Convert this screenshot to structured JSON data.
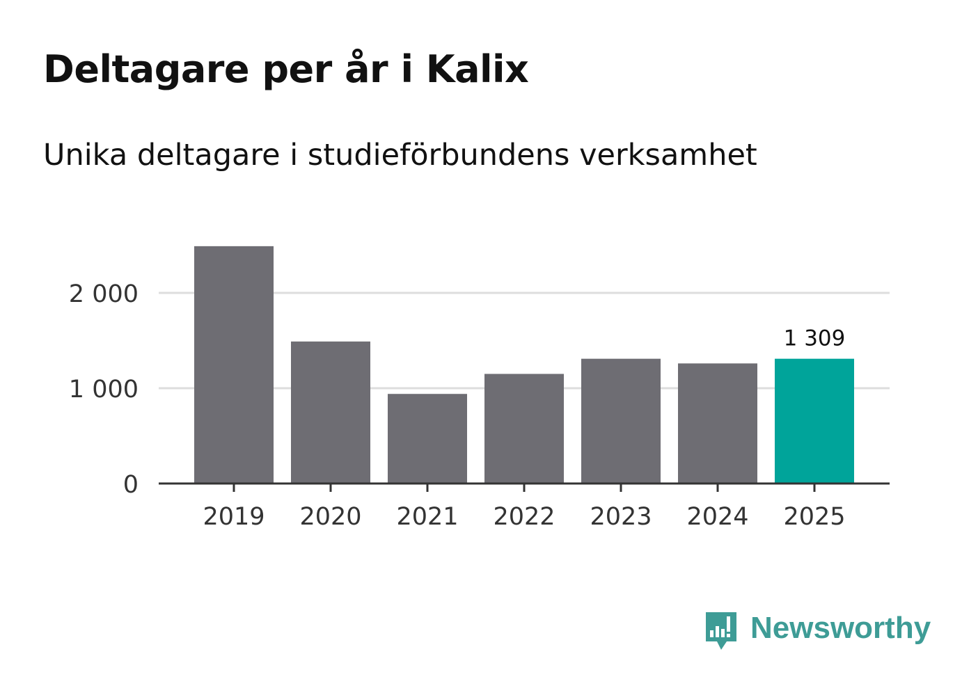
{
  "title": "Deltagare per år i Kalix",
  "subtitle": "Unika deltagare i studieförbundens verksamhet",
  "brand": {
    "name": "Newsworthy",
    "icon": "bar-chart-bubble-icon",
    "color": "#3e9c96"
  },
  "colors": {
    "bar": "#6e6d73",
    "highlight": "#00a49a",
    "grid": "#dddddd",
    "axis": "#333333"
  },
  "chart_data": {
    "type": "bar",
    "title": "Deltagare per år i Kalix",
    "subtitle": "Unika deltagare i studieförbundens verksamhet",
    "xlabel": "",
    "ylabel": "",
    "categories": [
      "2019",
      "2020",
      "2021",
      "2022",
      "2023",
      "2024",
      "2025"
    ],
    "values": [
      2490,
      1490,
      940,
      1150,
      1309,
      1260,
      1309
    ],
    "highlight_index": 6,
    "data_labels": [
      {
        "index": 6,
        "text": "1 309"
      }
    ],
    "yticks": [
      {
        "value": 0,
        "label": "0"
      },
      {
        "value": 1000,
        "label": "1 000"
      },
      {
        "value": 2000,
        "label": "2 000"
      }
    ],
    "ylim": [
      0,
      2600
    ],
    "grid": true,
    "legend": "none"
  }
}
